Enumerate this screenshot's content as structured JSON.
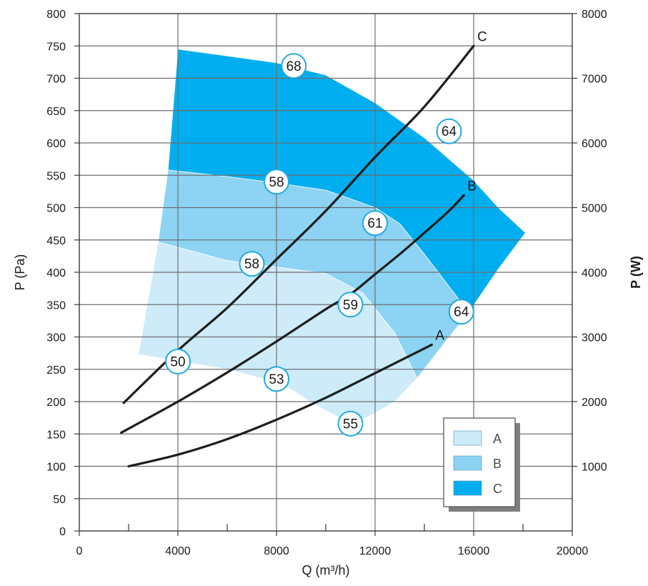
{
  "chart_data": {
    "type": "area",
    "xlabel": "Q (m³/h)",
    "ylabel": "P (Pa)",
    "y2label": "P (W)",
    "xlim": [
      0,
      20000
    ],
    "ylim": [
      0,
      800
    ],
    "y2lim": [
      0,
      8000
    ],
    "x_ticks": [
      0,
      4000,
      8000,
      12000,
      16000,
      20000
    ],
    "x_tick_labels": [
      "0",
      "4000",
      "8000",
      "12000",
      "16000",
      "20000"
    ],
    "x_minor_ticks": [
      2000,
      6000,
      10000,
      14000,
      18000
    ],
    "y_ticks": [
      0,
      50,
      100,
      150,
      200,
      250,
      300,
      350,
      400,
      450,
      500,
      550,
      600,
      650,
      700,
      750,
      800
    ],
    "y_tick_labels": [
      "0",
      "50",
      "100",
      "150",
      "200",
      "250",
      "300",
      "350",
      "400",
      "450",
      "500",
      "550",
      "600",
      "650",
      "700",
      "750",
      "800"
    ],
    "y2_ticks": [
      1000,
      2000,
      3000,
      4000,
      5000,
      6000,
      7000,
      8000
    ],
    "y2_tick_labels": [
      "1000",
      "2000",
      "3000",
      "4000",
      "5000",
      "6000",
      "7000",
      "8000"
    ],
    "grid": true,
    "legend_position": "bottom-right",
    "legend": [
      {
        "label": "A",
        "color": "#cdebf9"
      },
      {
        "label": "B",
        "color": "#8dd3f4"
      },
      {
        "label": "C",
        "color": "#00aeef"
      }
    ],
    "regions": [
      {
        "name": "C",
        "color": "#00aeef",
        "points": [
          [
            4000,
            745
          ],
          [
            8000,
            724
          ],
          [
            10000,
            705
          ],
          [
            12000,
            662
          ],
          [
            14000,
            608
          ],
          [
            16000,
            542
          ],
          [
            17000,
            500
          ],
          [
            18100,
            461
          ],
          [
            17000,
            405
          ],
          [
            15800,
            338
          ],
          [
            15000,
            378
          ],
          [
            14000,
            428
          ],
          [
            13000,
            475
          ],
          [
            12000,
            500
          ],
          [
            10000,
            527
          ],
          [
            8000,
            538
          ],
          [
            6000,
            548
          ],
          [
            3600,
            558
          ]
        ]
      },
      {
        "name": "B",
        "color": "#8dd3f4",
        "points": [
          [
            3600,
            558
          ],
          [
            6000,
            548
          ],
          [
            8000,
            538
          ],
          [
            10000,
            527
          ],
          [
            12000,
            500
          ],
          [
            13000,
            475
          ],
          [
            14000,
            428
          ],
          [
            15000,
            378
          ],
          [
            15800,
            338
          ],
          [
            14800,
            290
          ],
          [
            13700,
            236
          ],
          [
            12800,
            306
          ],
          [
            11500,
            368
          ],
          [
            10000,
            398
          ],
          [
            8000,
            408
          ],
          [
            6000,
            418
          ],
          [
            3200,
            447
          ]
        ]
      },
      {
        "name": "A",
        "color": "#cdebf9",
        "points": [
          [
            3200,
            447
          ],
          [
            6000,
            418
          ],
          [
            8000,
            408
          ],
          [
            10000,
            398
          ],
          [
            11500,
            368
          ],
          [
            12800,
            306
          ],
          [
            13700,
            236
          ],
          [
            12800,
            200
          ],
          [
            11700,
            176
          ],
          [
            11000,
            167
          ],
          [
            9800,
            190
          ],
          [
            8200,
            228
          ],
          [
            6000,
            250
          ],
          [
            2400,
            273
          ]
        ]
      }
    ],
    "series": [
      {
        "name": "A",
        "points": [
          [
            2000,
            100
          ],
          [
            4000,
            118
          ],
          [
            6000,
            142
          ],
          [
            8000,
            172
          ],
          [
            10000,
            206
          ],
          [
            12000,
            244
          ],
          [
            14300,
            288
          ]
        ]
      },
      {
        "name": "B",
        "points": [
          [
            1700,
            152
          ],
          [
            4000,
            200
          ],
          [
            6000,
            245
          ],
          [
            8000,
            293
          ],
          [
            10000,
            343
          ],
          [
            11000,
            366
          ],
          [
            12000,
            397
          ],
          [
            13000,
            428
          ],
          [
            14000,
            461
          ],
          [
            15000,
            495
          ],
          [
            15600,
            519
          ]
        ]
      },
      {
        "name": "C",
        "points": [
          [
            1800,
            198
          ],
          [
            4000,
            279
          ],
          [
            6000,
            345
          ],
          [
            8000,
            420
          ],
          [
            10000,
            495
          ],
          [
            12000,
            578
          ],
          [
            14000,
            656
          ],
          [
            16000,
            750
          ]
        ]
      }
    ],
    "annotations": [
      {
        "text": "68",
        "x": 8700,
        "y": 719
      },
      {
        "text": "64",
        "x": 15000,
        "y": 618
      },
      {
        "text": "58",
        "x": 8000,
        "y": 540
      },
      {
        "text": "61",
        "x": 12000,
        "y": 476
      },
      {
        "text": "58",
        "x": 7000,
        "y": 413
      },
      {
        "text": "59",
        "x": 11000,
        "y": 350
      },
      {
        "text": "64",
        "x": 15500,
        "y": 339
      },
      {
        "text": "50",
        "x": 4000,
        "y": 262
      },
      {
        "text": "53",
        "x": 8000,
        "y": 235
      },
      {
        "text": "55",
        "x": 11000,
        "y": 166
      }
    ]
  }
}
